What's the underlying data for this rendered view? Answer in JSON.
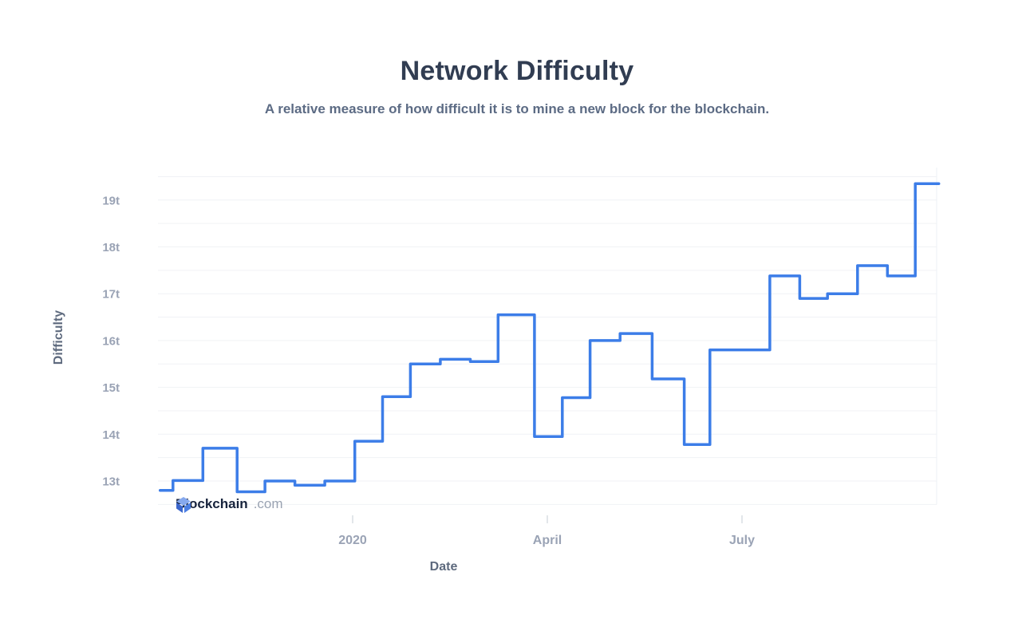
{
  "page": {
    "title": "Network Difficulty",
    "subtitle": "A relative measure of how difficult it is to mine a new block for the blockchain."
  },
  "watermark": {
    "icon": "blockchain-cube-icon",
    "brand": "Blockchain",
    "domain": ".com"
  },
  "chart_data": {
    "type": "line",
    "subtype": "step-after",
    "title": "Network Difficulty",
    "xlabel": "Date",
    "ylabel": "Difficulty",
    "y_unit": "t = trillion",
    "y_ticks": [
      "13t",
      "14t",
      "15t",
      "16t",
      "17t",
      "18t",
      "19t"
    ],
    "y_tick_values": [
      13,
      14,
      15,
      16,
      17,
      18,
      19
    ],
    "ylim": [
      12.5,
      19.7
    ],
    "grid": "horizontal only, every 0.5t, very light gray",
    "legend": "none",
    "line_color": "#3C7DE8",
    "x_ticks": [
      "2020",
      "April",
      "July"
    ],
    "x_tick_dates": [
      "2020-01-01",
      "2020-04-01",
      "2020-07-01"
    ],
    "x_range": [
      "2019-10-03",
      "2020-10-01"
    ],
    "series": [
      {
        "name": "Network Difficulty",
        "unit": "trillion (t)",
        "points": [
          {
            "date": "2019-10-03",
            "value": 12.8
          },
          {
            "date": "2019-10-09",
            "value": 13.01
          },
          {
            "date": "2019-10-23",
            "value": 13.7
          },
          {
            "date": "2019-11-08",
            "value": 12.77
          },
          {
            "date": "2019-11-21",
            "value": 13.0
          },
          {
            "date": "2019-12-05",
            "value": 12.91
          },
          {
            "date": "2019-12-19",
            "value": 13.0
          },
          {
            "date": "2020-01-02",
            "value": 13.85
          },
          {
            "date": "2020-01-15",
            "value": 14.8
          },
          {
            "date": "2020-01-28",
            "value": 15.5
          },
          {
            "date": "2020-02-11",
            "value": 15.6
          },
          {
            "date": "2020-02-25",
            "value": 15.55
          },
          {
            "date": "2020-03-09",
            "value": 16.55
          },
          {
            "date": "2020-03-26",
            "value": 13.95
          },
          {
            "date": "2020-04-08",
            "value": 14.78
          },
          {
            "date": "2020-04-21",
            "value": 16.0
          },
          {
            "date": "2020-05-05",
            "value": 16.15
          },
          {
            "date": "2020-05-20",
            "value": 15.18
          },
          {
            "date": "2020-06-04",
            "value": 13.78
          },
          {
            "date": "2020-06-16",
            "value": 15.8
          },
          {
            "date": "2020-07-14",
            "value": 17.38
          },
          {
            "date": "2020-07-28",
            "value": 16.9
          },
          {
            "date": "2020-08-10",
            "value": 17.0
          },
          {
            "date": "2020-08-24",
            "value": 17.6
          },
          {
            "date": "2020-09-07",
            "value": 17.38
          },
          {
            "date": "2020-09-20",
            "value": 19.35
          }
        ]
      }
    ]
  }
}
